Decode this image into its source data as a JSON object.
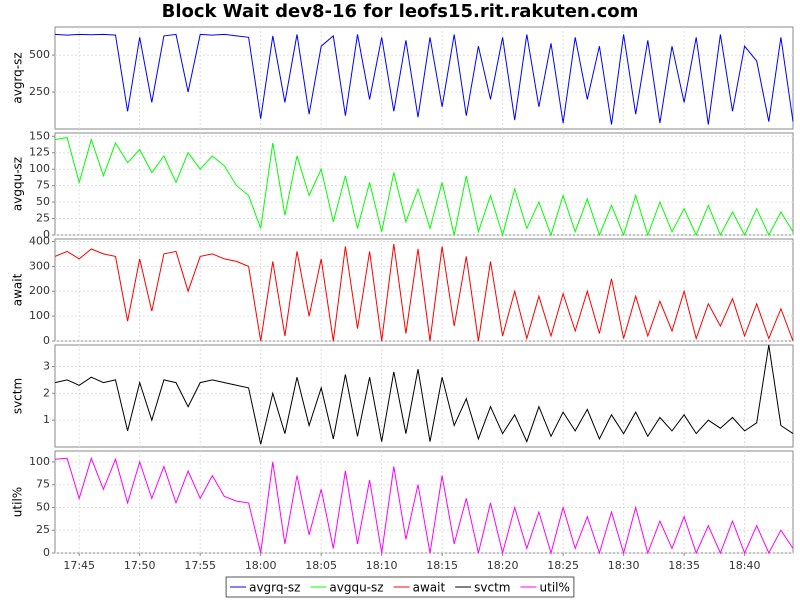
{
  "chart_data": {
    "type": "line",
    "title": "Block Wait dev8-16 for leofs15.rit.rakuten.com",
    "x": [
      1063,
      1064,
      1065,
      1066,
      1067,
      1068,
      1069,
      1070,
      1071,
      1072,
      1073,
      1074,
      1075,
      1076,
      1077,
      1078,
      1079,
      1080,
      1081,
      1082,
      1083,
      1084,
      1085,
      1086,
      1087,
      1088,
      1089,
      1090,
      1091,
      1092,
      1093,
      1094,
      1095,
      1096,
      1097,
      1098,
      1099,
      1100,
      1101,
      1102,
      1103,
      1104,
      1105,
      1106,
      1107,
      1108,
      1109,
      1110,
      1111,
      1112,
      1113,
      1114,
      1115,
      1116,
      1117,
      1118,
      1119,
      1120,
      1121,
      1122,
      1123,
      1124
    ],
    "xlim": [
      1063,
      1124
    ],
    "xticks": [
      {
        "value": 1065,
        "label": "17:45"
      },
      {
        "value": 1070,
        "label": "17:50"
      },
      {
        "value": 1075,
        "label": "17:55"
      },
      {
        "value": 1080,
        "label": "18:00"
      },
      {
        "value": 1085,
        "label": "18:05"
      },
      {
        "value": 1090,
        "label": "18:10"
      },
      {
        "value": 1095,
        "label": "18:15"
      },
      {
        "value": 1100,
        "label": "18:20"
      },
      {
        "value": 1105,
        "label": "18:25"
      },
      {
        "value": 1110,
        "label": "18:30"
      },
      {
        "value": 1115,
        "label": "18:35"
      },
      {
        "value": 1120,
        "label": "18:40"
      }
    ],
    "grid": true,
    "legend": "bottom",
    "series": [
      {
        "name": "avgrq-sz",
        "color": "#0000ff",
        "ylim": [
          0,
          690
        ],
        "yticks": [
          250,
          500
        ],
        "values": [
          640,
          635,
          640,
          638,
          640,
          635,
          120,
          620,
          180,
          630,
          640,
          250,
          640,
          635,
          640,
          630,
          620,
          70,
          630,
          180,
          640,
          100,
          560,
          630,
          90,
          640,
          200,
          620,
          120,
          600,
          80,
          620,
          150,
          640,
          90,
          560,
          200,
          620,
          60,
          640,
          150,
          580,
          40,
          620,
          200,
          560,
          30,
          640,
          100,
          600,
          40,
          560,
          180,
          620,
          30,
          640,
          120,
          560,
          460,
          50,
          620,
          50
        ]
      },
      {
        "name": "avgqu-sz",
        "color": "#00ff00",
        "ylim": [
          0,
          155
        ],
        "yticks": [
          0,
          25,
          50,
          75,
          100,
          125,
          150
        ],
        "values": [
          145,
          148,
          80,
          145,
          90,
          140,
          110,
          130,
          95,
          120,
          80,
          125,
          100,
          120,
          105,
          75,
          60,
          10,
          140,
          30,
          120,
          60,
          100,
          20,
          90,
          10,
          80,
          5,
          95,
          20,
          70,
          10,
          80,
          0,
          90,
          5,
          60,
          0,
          70,
          10,
          50,
          0,
          60,
          5,
          55,
          0,
          45,
          0,
          60,
          0,
          50,
          5,
          40,
          0,
          45,
          0,
          35,
          0,
          40,
          0,
          35,
          5
        ]
      },
      {
        "name": "await",
        "color": "#ff0000",
        "ylim": [
          0,
          410
        ],
        "yticks": [
          0,
          100,
          200,
          300,
          400
        ],
        "values": [
          340,
          360,
          330,
          370,
          350,
          340,
          80,
          330,
          120,
          350,
          360,
          200,
          340,
          350,
          330,
          320,
          300,
          0,
          320,
          20,
          360,
          100,
          330,
          0,
          380,
          50,
          360,
          0,
          390,
          30,
          370,
          0,
          380,
          60,
          340,
          0,
          320,
          20,
          200,
          10,
          180,
          20,
          190,
          40,
          200,
          30,
          250,
          10,
          180,
          20,
          160,
          40,
          200,
          10,
          150,
          60,
          170,
          20,
          150,
          10,
          130,
          0
        ]
      },
      {
        "name": "svctm",
        "color": "#000000",
        "ylim": [
          0,
          3.8
        ],
        "yticks": [
          1,
          2,
          3
        ],
        "values": [
          2.4,
          2.5,
          2.3,
          2.6,
          2.4,
          2.5,
          0.6,
          2.4,
          1.0,
          2.5,
          2.4,
          1.5,
          2.4,
          2.5,
          2.4,
          2.3,
          2.2,
          0.1,
          2.0,
          0.5,
          2.6,
          0.8,
          2.2,
          0.3,
          2.7,
          0.4,
          2.6,
          0.2,
          2.8,
          0.5,
          2.9,
          0.2,
          2.6,
          0.8,
          1.8,
          0.3,
          1.5,
          0.5,
          1.2,
          0.2,
          1.5,
          0.4,
          1.3,
          0.6,
          1.4,
          0.3,
          1.2,
          0.5,
          1.3,
          0.4,
          1.1,
          0.6,
          1.2,
          0.5,
          1.0,
          0.7,
          1.1,
          0.6,
          0.9,
          3.8,
          0.8,
          0.5
        ]
      },
      {
        "name": "util%",
        "color": "#ff00ff",
        "ylim": [
          0,
          112
        ],
        "yticks": [
          0,
          25,
          50,
          75,
          100
        ],
        "values": [
          103,
          104,
          60,
          104,
          70,
          103,
          55,
          100,
          60,
          95,
          55,
          90,
          60,
          85,
          62,
          57,
          55,
          0,
          100,
          10,
          85,
          20,
          70,
          5,
          90,
          10,
          80,
          0,
          95,
          15,
          75,
          0,
          85,
          10,
          60,
          0,
          55,
          0,
          50,
          5,
          45,
          0,
          50,
          5,
          40,
          0,
          45,
          0,
          50,
          0,
          35,
          5,
          40,
          0,
          30,
          0,
          35,
          0,
          30,
          0,
          25,
          5
        ]
      }
    ]
  }
}
